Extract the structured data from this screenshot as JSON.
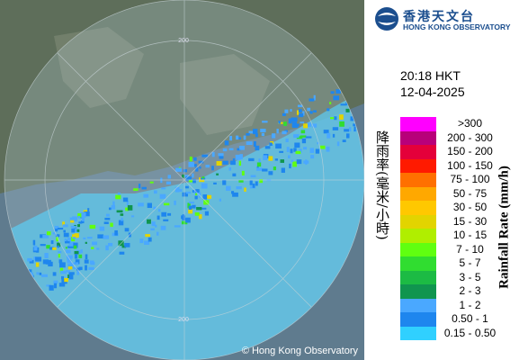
{
  "logo": {
    "title": "香港天文台",
    "subtitle": "HONG KONG OBSERVATORY"
  },
  "time": "20:18 HKT",
  "date": "12-04-2025",
  "legend": {
    "title_zh": "降雨率(毫米/小時)",
    "title_en": "Rainfall Rate (mm/h)",
    "items": [
      {
        "label": ">300",
        "color": "#ff00ff"
      },
      {
        "label": "200 - 300",
        "color": "#b8007a"
      },
      {
        "label": "150 - 200",
        "color": "#e4003a"
      },
      {
        "label": "100 - 150",
        "color": "#ff1a00"
      },
      {
        "label": "75 - 100",
        "color": "#ff7000"
      },
      {
        "label": "50 - 75",
        "color": "#ffa800"
      },
      {
        "label": "30 - 50",
        "color": "#ffc800"
      },
      {
        "label": "15 - 30",
        "color": "#e2d400"
      },
      {
        "label": "10 - 15",
        "color": "#b0ee00"
      },
      {
        "label": "7 - 10",
        "color": "#60ff10"
      },
      {
        "label": "5 - 7",
        "color": "#30dd30"
      },
      {
        "label": "3 - 5",
        "color": "#1cbb44"
      },
      {
        "label": "2 - 3",
        "color": "#10954f"
      },
      {
        "label": "1 - 2",
        "color": "#4aa8ff"
      },
      {
        "label": "0.50 - 1",
        "color": "#1e86ee"
      },
      {
        "label": "0.15 - 0.50",
        "color": "#30d0ff"
      }
    ]
  },
  "map": {
    "ring_labels": [
      "200",
      "200"
    ],
    "copyright": "© Hong Kong Observatory"
  }
}
